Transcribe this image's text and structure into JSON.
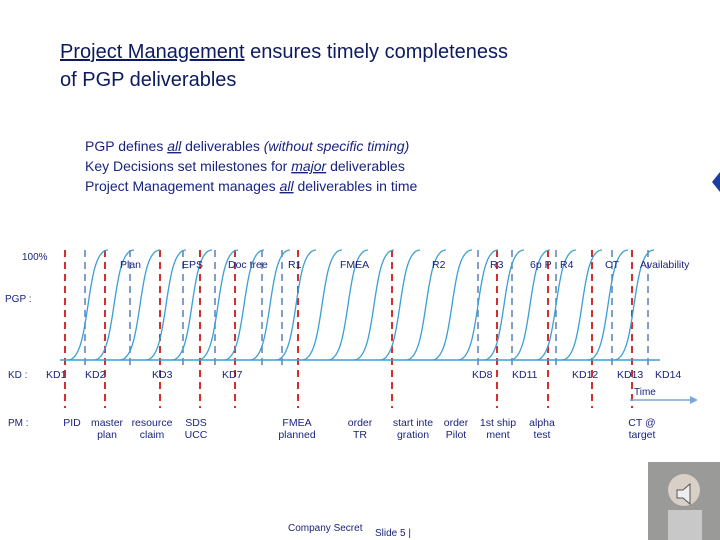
{
  "title": {
    "highlight": "Project Management",
    "rest": " ensures timely completeness",
    "line2": "of PGP deliverables"
  },
  "bullets": [
    [
      "PGP defines ",
      "all",
      " deliverables ",
      "(without specific timing)"
    ],
    [
      "Key Decisions set milestones for ",
      "major",
      " deliverables"
    ],
    [
      "Project Management manages ",
      "all",
      " deliverables in time"
    ]
  ],
  "diagram": {
    "hundred": "100%",
    "deliverables": [
      "Plan",
      "EPS",
      "Doc tree",
      "R1",
      "FMEA",
      "R2",
      "R3",
      "6p P",
      "R4",
      "CT",
      "Availability"
    ],
    "rows": {
      "pgp": "PGP :",
      "kd": "KD :",
      "pm": "PM :"
    },
    "kds": [
      "KD1",
      "KD2",
      "KD3",
      "KD7",
      "KD8",
      "KD11",
      "KD12",
      "KD13",
      "KD14"
    ],
    "time": "Time",
    "pm_items": [
      [
        "PID"
      ],
      [
        "master",
        "plan"
      ],
      [
        "resource",
        "claim"
      ],
      [
        "SDS",
        "UCC"
      ],
      [
        "FMEA",
        "planned"
      ],
      [
        "order",
        "TR"
      ],
      [
        "start inte",
        "gration"
      ],
      [
        "order",
        "Pilot"
      ],
      [
        "1st ship",
        "ment"
      ],
      [
        "alpha",
        "test"
      ],
      [
        "CT @",
        "target"
      ]
    ]
  },
  "footer": {
    "secret": "Company Secret",
    "slide": "Slide 5 |"
  }
}
